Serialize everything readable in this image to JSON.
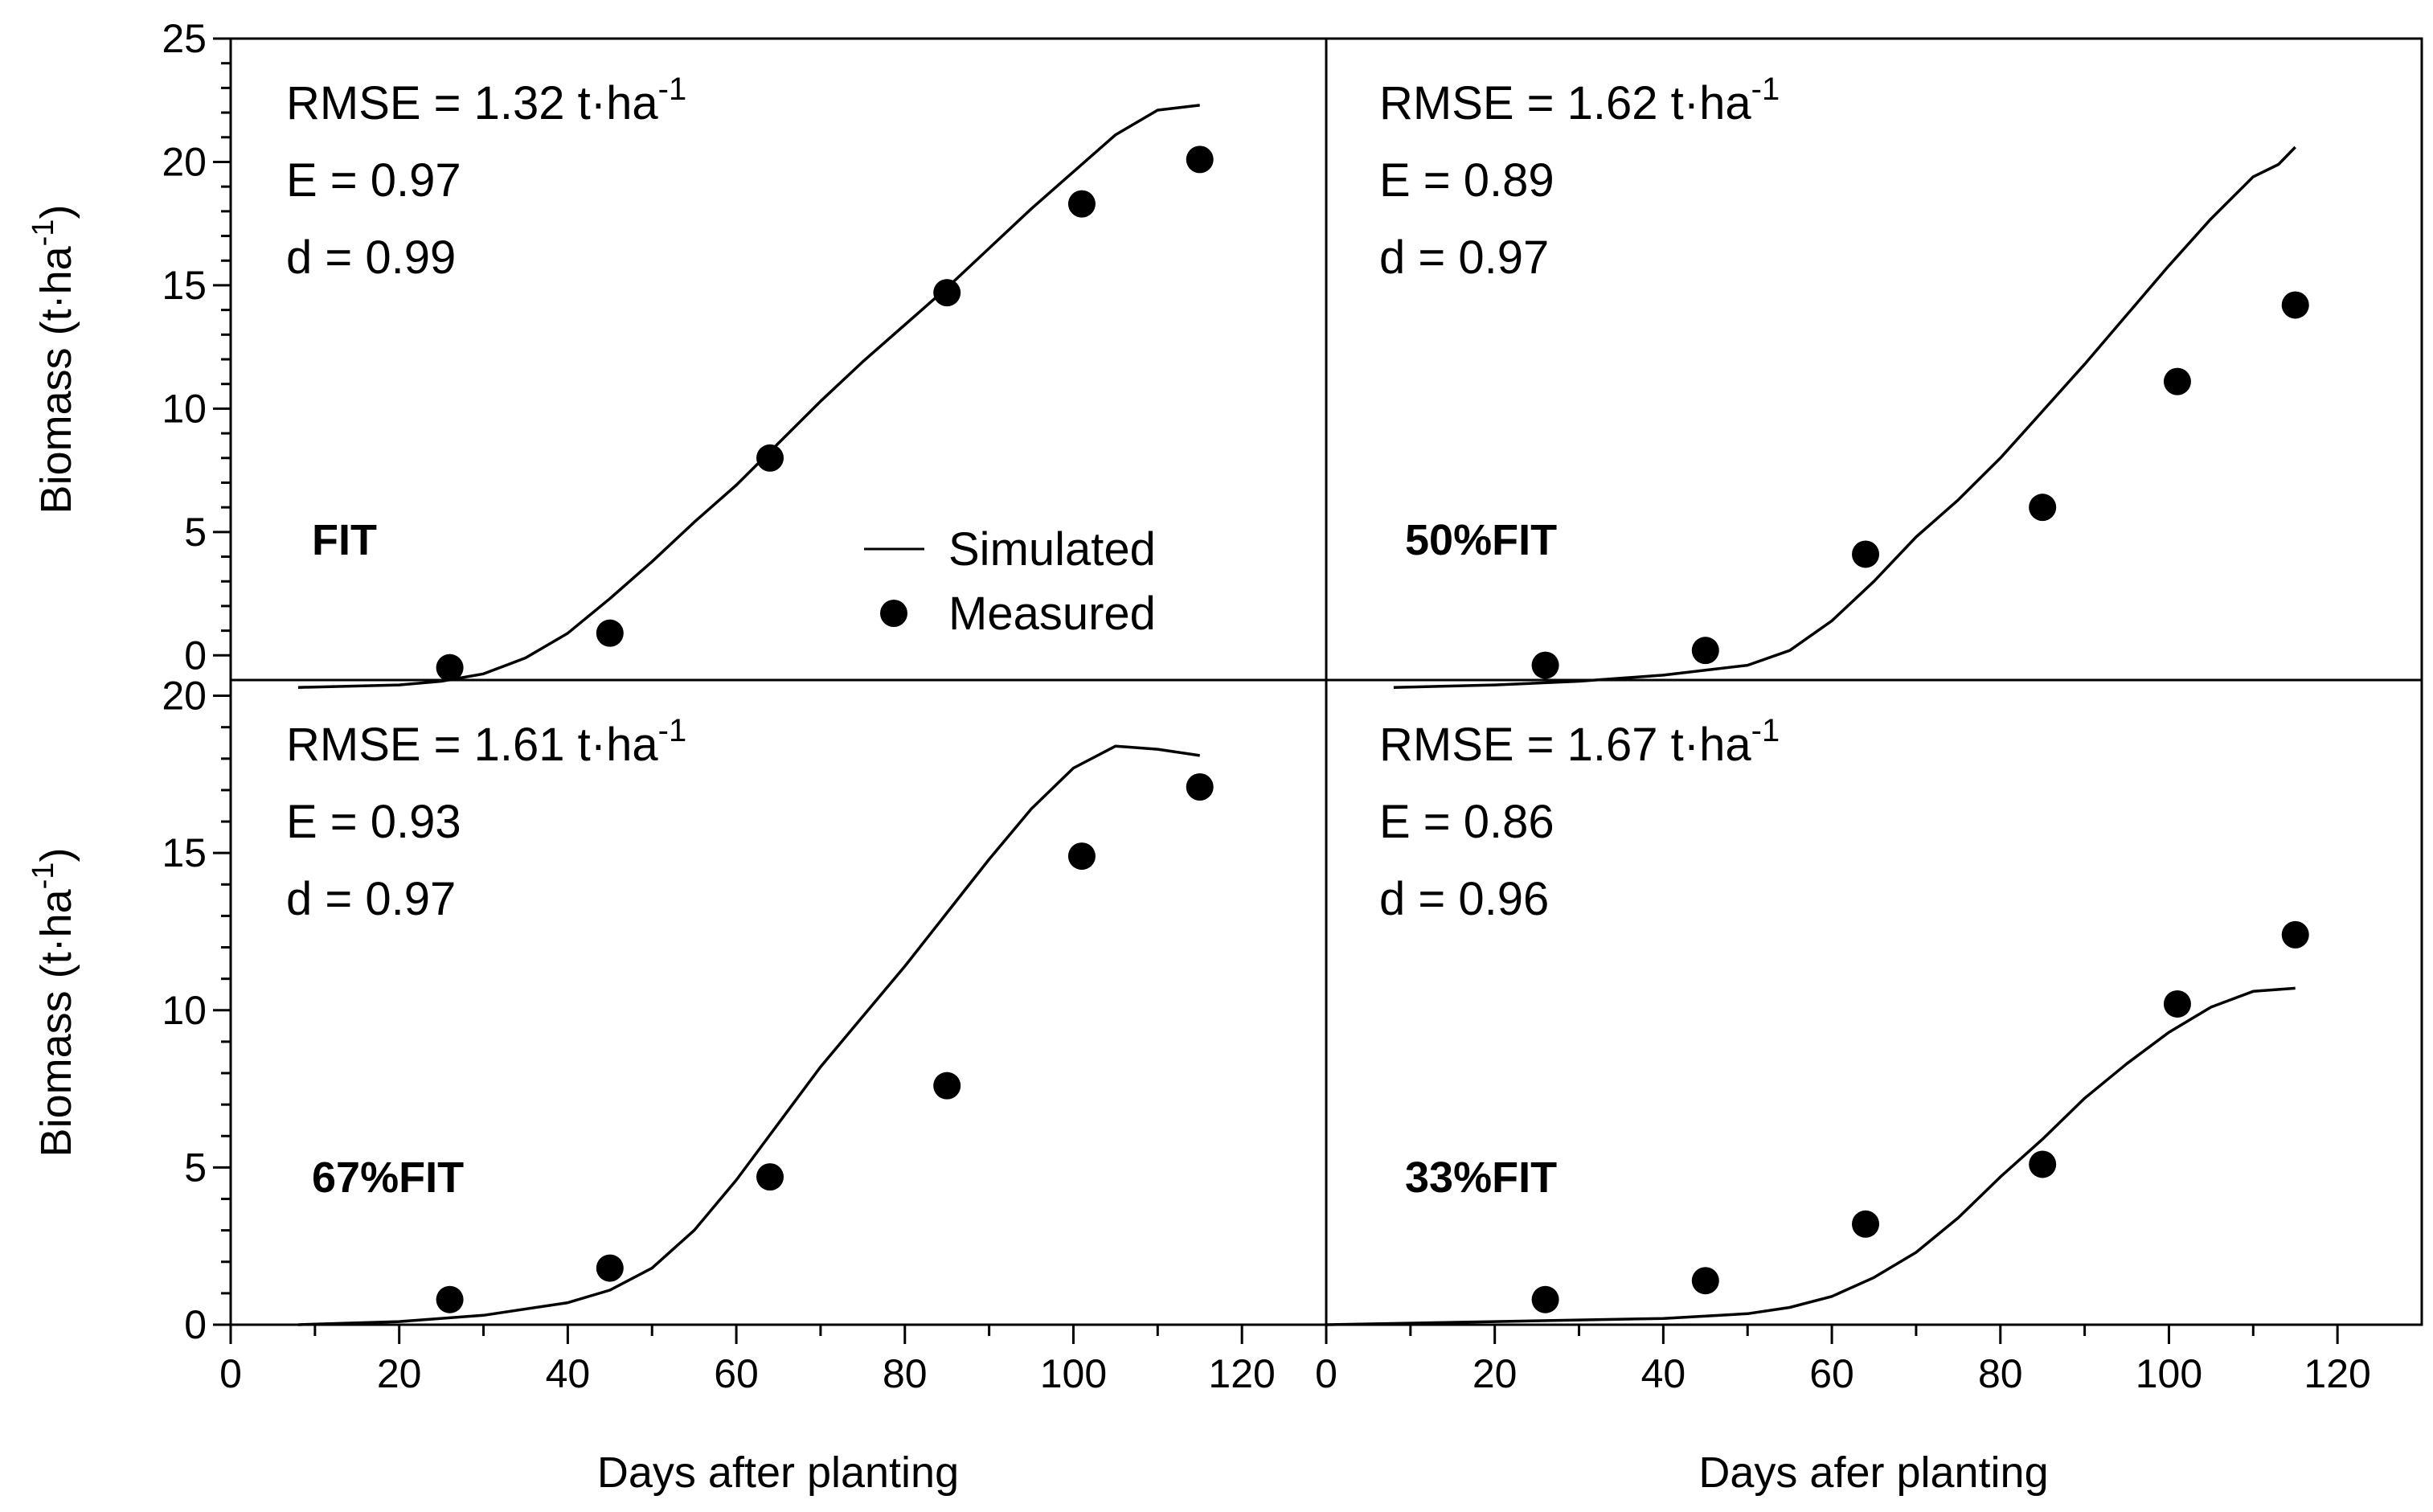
{
  "figure": {
    "ylabel": "Biomass (t·ha",
    "ylabel_sup": "-1",
    "ylabel_end": ")",
    "xlabels": [
      "Days after planting",
      "Days afer planting"
    ],
    "legend": {
      "simulated": "Simulated",
      "measured": "Measured"
    }
  },
  "chart_data": [
    {
      "type": "line",
      "panel": "top-left",
      "treatment": "FIT",
      "stats": {
        "rmse_prefix": "RMSE = 1.32 t·ha",
        "rmse_sup": "-1",
        "e": "E = 0.97",
        "d": "d = 0.99"
      },
      "xlim": [
        0,
        130
      ],
      "ylim": [
        -1,
        25
      ],
      "yticks": [
        0,
        5,
        10,
        15,
        20,
        25
      ],
      "xticks": [],
      "simulated": {
        "x": [
          8,
          20,
          25,
          30,
          35,
          40,
          45,
          50,
          55,
          60,
          65,
          70,
          75,
          80,
          85,
          90,
          95,
          100,
          105,
          110,
          115
        ],
        "y": [
          -1.3,
          -1.2,
          -1.05,
          -0.75,
          -0.1,
          0.9,
          2.3,
          3.8,
          5.4,
          6.9,
          8.6,
          10.3,
          11.9,
          13.4,
          14.9,
          16.5,
          18.1,
          19.6,
          21.1,
          22.1,
          22.3
        ]
      },
      "measured": {
        "x": [
          26,
          45,
          64,
          85,
          101,
          115
        ],
        "y": [
          -0.5,
          0.9,
          8.0,
          14.7,
          18.3,
          20.1
        ]
      }
    },
    {
      "type": "line",
      "panel": "top-right",
      "treatment": "50%FIT",
      "stats": {
        "rmse_prefix": "RMSE = 1.62 t·ha",
        "rmse_sup": "-1",
        "e": "E = 0.89",
        "d": "d = 0.97"
      },
      "xlim": [
        0,
        130
      ],
      "ylim": [
        -1,
        25
      ],
      "yticks": [],
      "xticks": [],
      "simulated": {
        "x": [
          8,
          20,
          30,
          40,
          50,
          55,
          60,
          65,
          70,
          75,
          80,
          85,
          90,
          95,
          100,
          105,
          110,
          113,
          115
        ],
        "y": [
          -1.3,
          -1.2,
          -1.05,
          -0.8,
          -0.4,
          0.2,
          1.4,
          3.0,
          4.8,
          6.3,
          8.0,
          9.9,
          11.8,
          13.8,
          15.8,
          17.7,
          19.4,
          19.9,
          20.6
        ]
      },
      "measured": {
        "x": [
          26,
          45,
          64,
          85,
          101,
          115
        ],
        "y": [
          -0.4,
          0.2,
          4.1,
          6.0,
          11.1,
          14.2
        ]
      }
    },
    {
      "type": "line",
      "panel": "bottom-left",
      "treatment": "67%FIT",
      "stats": {
        "rmse_prefix": "RMSE = 1.61 t·ha",
        "rmse_sup": "-1",
        "e": "E = 0.93",
        "d": "d = 0.97"
      },
      "xlim": [
        0,
        130
      ],
      "ylim": [
        0,
        20.5
      ],
      "yticks": [
        0,
        5,
        10,
        15,
        20
      ],
      "xticks": [
        0,
        20,
        40,
        60,
        80,
        100,
        120
      ],
      "simulated": {
        "x": [
          8,
          20,
          30,
          40,
          45,
          50,
          55,
          60,
          65,
          70,
          75,
          80,
          85,
          90,
          95,
          100,
          105,
          110,
          115
        ],
        "y": [
          0,
          0.1,
          0.3,
          0.7,
          1.1,
          1.8,
          3.0,
          4.6,
          6.4,
          8.2,
          9.8,
          11.4,
          13.1,
          14.8,
          16.4,
          17.7,
          18.4,
          18.3,
          18.1
        ]
      },
      "measured": {
        "x": [
          26,
          45,
          64,
          85,
          101,
          115
        ],
        "y": [
          0.8,
          1.8,
          4.7,
          7.6,
          14.9,
          17.1
        ]
      }
    },
    {
      "type": "line",
      "panel": "bottom-right",
      "treatment": "33%FIT",
      "stats": {
        "rmse_prefix": "RMSE = 1.67 t·ha",
        "rmse_sup": "-1",
        "e": "E = 0.86",
        "d": "d = 0.96"
      },
      "xlim": [
        0,
        130
      ],
      "ylim": [
        0,
        20.5
      ],
      "yticks": [],
      "xticks": [
        0,
        20,
        40,
        60,
        80,
        100,
        120
      ],
      "simulated": {
        "x": [
          0,
          20,
          40,
          50,
          55,
          60,
          65,
          70,
          75,
          80,
          85,
          90,
          95,
          100,
          105,
          110,
          115
        ],
        "y": [
          0,
          0.1,
          0.2,
          0.35,
          0.55,
          0.9,
          1.5,
          2.3,
          3.4,
          4.7,
          5.9,
          7.2,
          8.3,
          9.3,
          10.1,
          10.6,
          10.7
        ]
      },
      "measured": {
        "x": [
          26,
          45,
          64,
          85,
          101,
          115
        ],
        "y": [
          0.8,
          1.4,
          3.2,
          5.1,
          10.2,
          12.4
        ]
      }
    }
  ]
}
